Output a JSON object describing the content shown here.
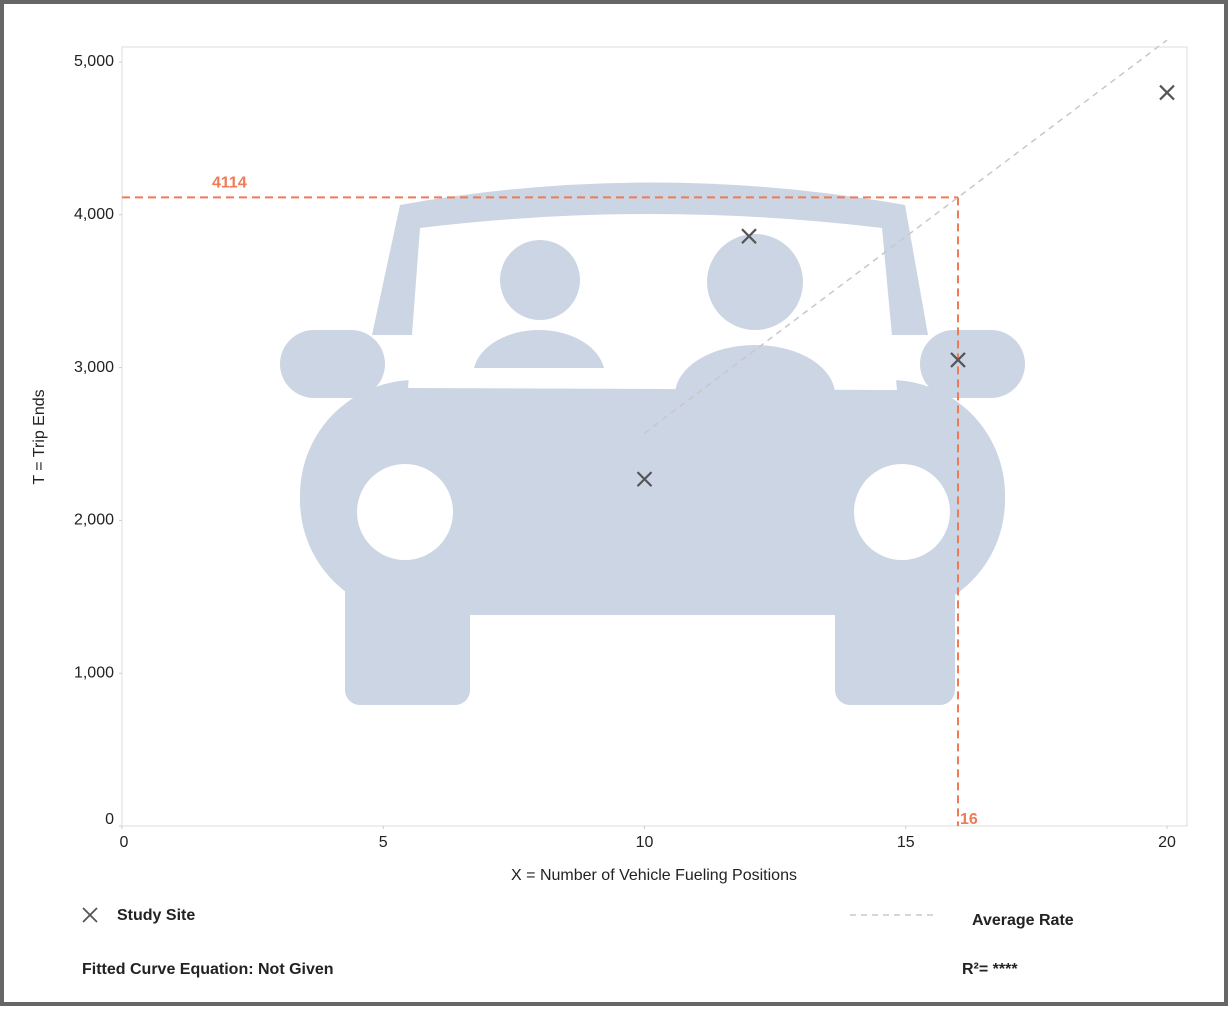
{
  "chart_data": {
    "type": "scatter",
    "x_label": "X = Number of Vehicle Fueling Positions",
    "y_label": "T = Trip Ends",
    "xlim": [
      0,
      20
    ],
    "ylim": [
      0,
      5000
    ],
    "xticks": [
      0,
      5,
      10,
      15,
      20
    ],
    "yticks": [
      0,
      {
        "value": 1000,
        "label": "1,000"
      },
      {
        "value": 2000,
        "label": "2,000"
      },
      {
        "value": 3000,
        "label": "3,000"
      },
      {
        "value": 4000,
        "label": "4,000"
      },
      {
        "value": 5000,
        "label": "5,000"
      }
    ],
    "series": [
      {
        "name": "Study Site",
        "color": "#555555",
        "x": [
          10,
          12,
          16,
          20
        ],
        "values": [
          2270,
          3860,
          3050,
          4800
        ]
      }
    ],
    "average_rate": {
      "name": "Average Rate",
      "color": "#c8c8c8",
      "x": [
        10,
        20
      ],
      "values": [
        2571,
        5143
      ]
    },
    "annotation": {
      "x": 16,
      "y": 4114,
      "color": "#f07a55"
    },
    "fitted_curve": "Fitted Curve Equation: Not Given",
    "r_squared": "R²= ****"
  }
}
